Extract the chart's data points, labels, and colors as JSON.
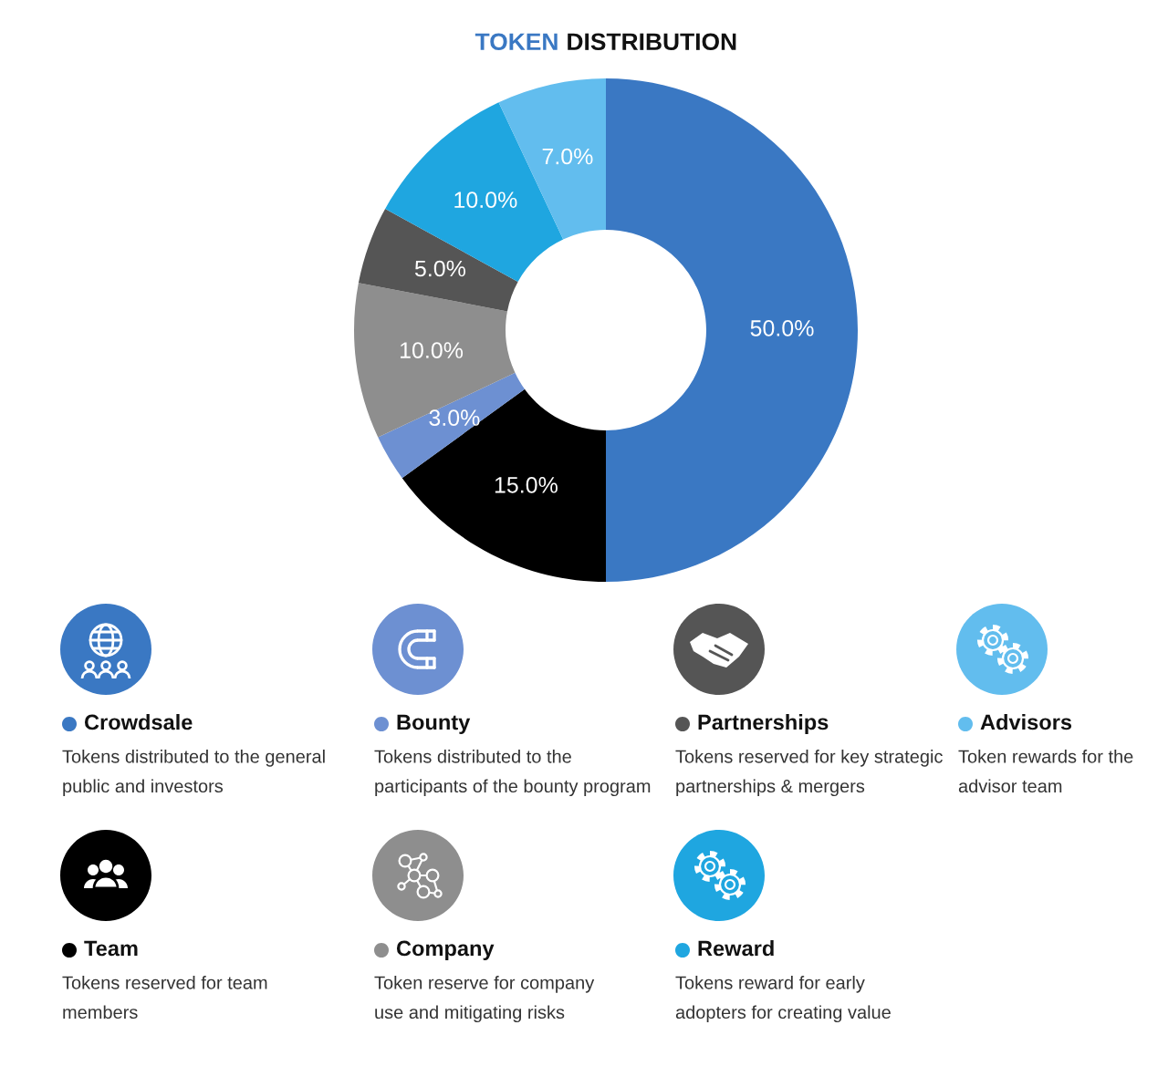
{
  "chart_data": {
    "type": "donut",
    "title": "TOKEN DISTRIBUTION",
    "categories": [
      "Crowdsale",
      "Team",
      "Bounty",
      "Company",
      "Partnerships",
      "Reward",
      "Advisors"
    ],
    "values": [
      50,
      15,
      3,
      10,
      5,
      10,
      7
    ],
    "value_labels": [
      "50.0%",
      "15.0%",
      "3.0%",
      "10.0%",
      "5.0%",
      "10.0%",
      "7.0%"
    ],
    "colors": [
      "#3a78c3",
      "#000000",
      "#6d90d2",
      "#8e8e8e",
      "#555555",
      "#1fa6e0",
      "#62bdee"
    ],
    "legend": "bottom",
    "annotations": [
      "Tokens distributed to the general\npublic and investors",
      "Tokens reserved for team\nmembers",
      "Tokens distributed to the\nparticipants of the bounty program",
      "Token reserve for company\nuse and mitigating risks",
      "Tokens reserved for key strategic\npartnerships & mergers",
      "Tokens reward for early\nadopters for creating value",
      "Token rewards for the\nadvisor team"
    ]
  }
}
